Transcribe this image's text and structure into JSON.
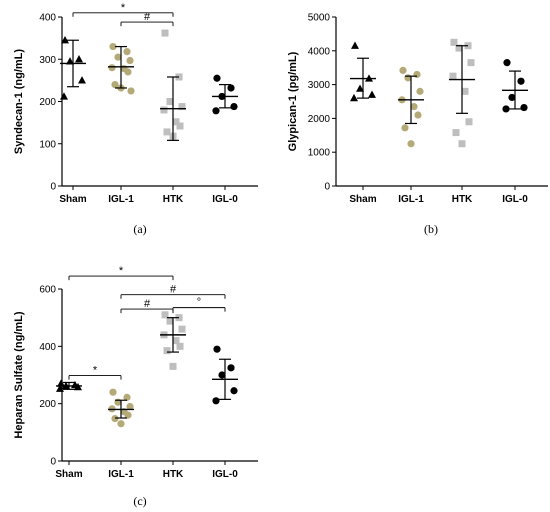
{
  "colors": {
    "axis": "#000000",
    "sham": "#000000",
    "igl1": "#b4aa78",
    "htk": "#bebebe",
    "igl0": "#000000"
  },
  "chart_data": [
    {
      "type": "scatter",
      "panel_label": "(a)",
      "ylabel": "Syndecan-1 (ng/mL)",
      "ylim": [
        0,
        400
      ],
      "yticks": [
        "0",
        "100",
        "200",
        "300",
        "400"
      ],
      "categories": [
        "Sham",
        "IGL-1",
        "HTK",
        "IGL-0"
      ],
      "series": [
        {
          "marker": "triangle",
          "color": "sham",
          "points": [
            345,
            300,
            295,
            250,
            212
          ],
          "mean": 290,
          "sd": [
            235,
            345
          ]
        },
        {
          "marker": "circle",
          "color": "igl1",
          "points": [
            330,
            318,
            305,
            297,
            280,
            278,
            270,
            240,
            232,
            225
          ],
          "mean": 282,
          "sd": [
            232,
            330
          ]
        },
        {
          "marker": "square",
          "color": "htk",
          "points": [
            362,
            258,
            200,
            188,
            180,
            152,
            142,
            128,
            118
          ],
          "mean": 183,
          "sd": [
            108,
            258
          ]
        },
        {
          "marker": "circle",
          "color": "igl0",
          "points": [
            255,
            232,
            212,
            188,
            178
          ],
          "mean": 212,
          "sd": [
            185,
            240
          ]
        }
      ],
      "significance": [
        {
          "from": 0,
          "to": 2,
          "level": 410,
          "label": "*"
        },
        {
          "from": 1,
          "to": 2,
          "level": 388,
          "label": "#"
        }
      ]
    },
    {
      "type": "scatter",
      "panel_label": "(b)",
      "ylabel": "Glypican-1 (pg/mL)",
      "ylim": [
        0,
        5000
      ],
      "yticks": [
        "0",
        "1000",
        "2000",
        "3000",
        "4000",
        "5000"
      ],
      "categories": [
        "Sham",
        "IGL-1",
        "HTK",
        "IGL-0"
      ],
      "series": [
        {
          "marker": "triangle",
          "color": "sham",
          "points": [
            4150,
            3180,
            2880,
            2700,
            2600
          ],
          "mean": 3180,
          "sd": [
            2600,
            3780
          ]
        },
        {
          "marker": "circle",
          "color": "igl1",
          "points": [
            3420,
            3300,
            3200,
            2800,
            2550,
            2350,
            2100,
            1720,
            1250
          ],
          "mean": 2550,
          "sd": [
            1850,
            3250
          ]
        },
        {
          "marker": "square",
          "color": "htk",
          "points": [
            4250,
            4150,
            4080,
            3650,
            3250,
            2800,
            1900,
            1580,
            1250
          ],
          "mean": 3150,
          "sd": [
            2150,
            4150
          ]
        },
        {
          "marker": "circle",
          "color": "igl0",
          "points": [
            3650,
            3100,
            2620,
            2320,
            2280
          ],
          "mean": 2830,
          "sd": [
            2280,
            3400
          ]
        }
      ],
      "significance": []
    },
    {
      "type": "scatter",
      "panel_label": "(c)",
      "ylabel": "Heparan Sulfate (ng/mL)",
      "ylim": [
        0,
        600
      ],
      "yticks": [
        "0",
        "200",
        "400",
        "600"
      ],
      "categories": [
        "Sham",
        "IGL-1",
        "HTK",
        "IGL-0"
      ],
      "series": [
        {
          "marker": "triangle",
          "color": "sham",
          "points": [
            270,
            265,
            262,
            258,
            252
          ],
          "mean": 262,
          "sd": [
            250,
            274
          ]
        },
        {
          "marker": "circle",
          "color": "igl1",
          "points": [
            240,
            222,
            205,
            190,
            182,
            172,
            160,
            148,
            130
          ],
          "mean": 180,
          "sd": [
            150,
            212
          ]
        },
        {
          "marker": "square",
          "color": "htk",
          "points": [
            510,
            500,
            488,
            460,
            440,
            420,
            400,
            385,
            330
          ],
          "mean": 440,
          "sd": [
            380,
            500
          ]
        },
        {
          "marker": "circle",
          "color": "igl0",
          "points": [
            390,
            325,
            300,
            245,
            210
          ],
          "mean": 285,
          "sd": [
            215,
            355
          ]
        }
      ],
      "significance": [
        {
          "from": 0,
          "to": 2,
          "level": 645,
          "label": "*"
        },
        {
          "from": 1,
          "to": 3,
          "level": 580,
          "label": "#"
        },
        {
          "from": 1,
          "to": 2,
          "level": 530,
          "label": "#"
        },
        {
          "from": 2,
          "to": 3,
          "level": 535,
          "label": "°"
        },
        {
          "from": 0,
          "to": 1,
          "level": 298,
          "label": "*"
        }
      ]
    }
  ]
}
